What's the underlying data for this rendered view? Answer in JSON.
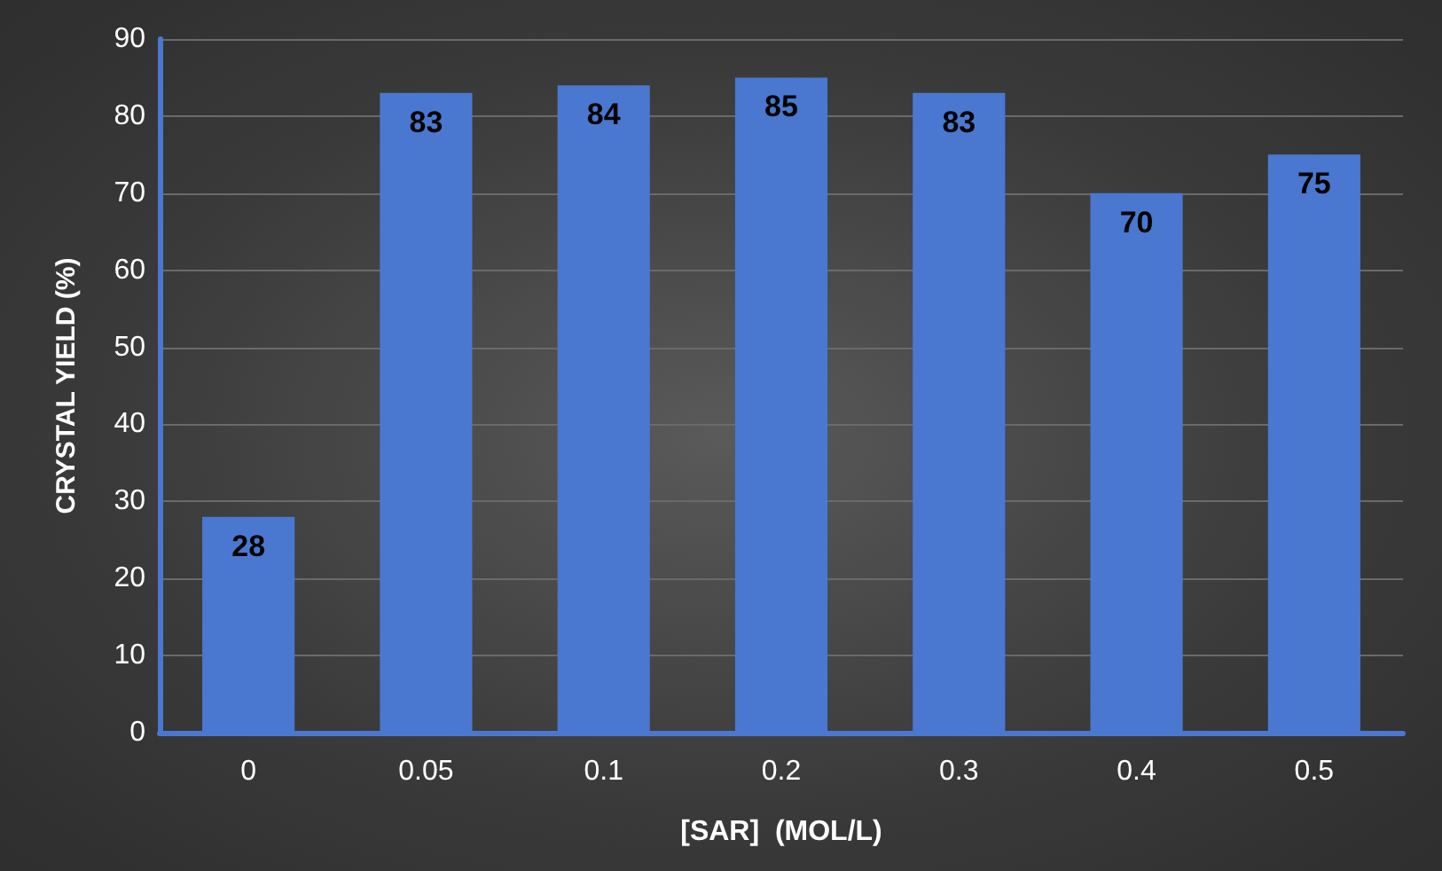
{
  "chart_data": {
    "type": "bar",
    "xlabel": "[SAR]  (MOL/L)",
    "ylabel": "CRYSTAL YIELD (%)",
    "categories": [
      "0",
      "0.05",
      "0.1",
      "0.2",
      "0.3",
      "0.4",
      "0.5"
    ],
    "values": [
      28,
      83,
      84,
      85,
      83,
      70,
      75
    ],
    "color": "#4a78d0",
    "ylim": [
      0,
      90
    ],
    "yticks": [
      0,
      10,
      20,
      30,
      40,
      50,
      60,
      70,
      80,
      90
    ],
    "grid": "y",
    "data_labels": true
  }
}
